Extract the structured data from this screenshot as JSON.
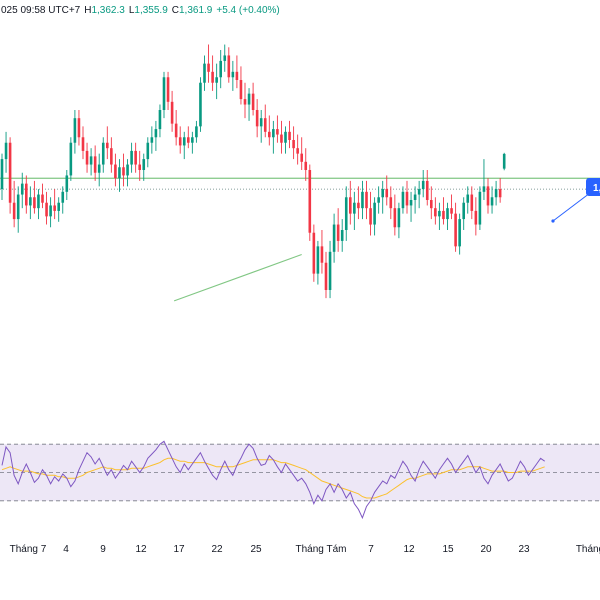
{
  "legend": {
    "time_fragment": "025 09:58 UTC+7",
    "high_label": "H",
    "high_value": "1,362.3",
    "low_label": "L",
    "low_value": "1,355.9",
    "close_label": "C",
    "close_value": "1,361.9",
    "change": "+5.4 (+0.40%)"
  },
  "callout": {
    "text": "1,",
    "color": "#2962ff"
  },
  "colors": {
    "up": "#089981",
    "down": "#f23645",
    "trendline": "#81c784",
    "level": "#4caf50",
    "rsi_line": "#7e57c2",
    "rsi_ma": "#fbc02d",
    "rsi_band": "#ede7f6"
  },
  "chart_data": [
    {
      "type": "candlestick",
      "x_tick_labels": [
        "Tháng 7",
        "4",
        "9",
        "12",
        "17",
        "22",
        "25",
        "Tháng Tám",
        "7",
        "12",
        "15",
        "20",
        "23",
        "Tháng"
      ],
      "ylim": [
        1290,
        1400
      ],
      "levels": [
        {
          "y": 1353,
          "style": "solid"
        },
        {
          "y": 1349,
          "style": "dotted"
        }
      ],
      "trendlines": [
        {
          "x1": 42.5,
          "y1": 1308,
          "x2": 74,
          "y2": 1325
        }
      ],
      "ohlc": [
        [
          1349,
          1362,
          1345,
          1360
        ],
        [
          1360,
          1370,
          1355,
          1366
        ],
        [
          1366,
          1368,
          1340,
          1344
        ],
        [
          1344,
          1352,
          1335,
          1338
        ],
        [
          1338,
          1350,
          1333,
          1347
        ],
        [
          1347,
          1355,
          1342,
          1351
        ],
        [
          1351,
          1354,
          1340,
          1343
        ],
        [
          1343,
          1350,
          1338,
          1346
        ],
        [
          1346,
          1352,
          1340,
          1342
        ],
        [
          1342,
          1349,
          1338,
          1347
        ],
        [
          1347,
          1351,
          1342,
          1344
        ],
        [
          1344,
          1348,
          1336,
          1339
        ],
        [
          1339,
          1346,
          1335,
          1343
        ],
        [
          1343,
          1349,
          1338,
          1341
        ],
        [
          1341,
          1346,
          1337,
          1344
        ],
        [
          1344,
          1350,
          1340,
          1348
        ],
        [
          1348,
          1356,
          1345,
          1354
        ],
        [
          1354,
          1368,
          1352,
          1366
        ],
        [
          1366,
          1378,
          1362,
          1375
        ],
        [
          1375,
          1378,
          1365,
          1368
        ],
        [
          1368,
          1372,
          1360,
          1363
        ],
        [
          1363,
          1366,
          1355,
          1358
        ],
        [
          1358,
          1364,
          1354,
          1361
        ],
        [
          1361,
          1365,
          1352,
          1355
        ],
        [
          1355,
          1362,
          1350,
          1358
        ],
        [
          1358,
          1368,
          1355,
          1366
        ],
        [
          1366,
          1372,
          1360,
          1364
        ],
        [
          1364,
          1368,
          1355,
          1358
        ],
        [
          1358,
          1362,
          1350,
          1353
        ],
        [
          1353,
          1360,
          1348,
          1357
        ],
        [
          1357,
          1362,
          1350,
          1354
        ],
        [
          1354,
          1360,
          1350,
          1358
        ],
        [
          1358,
          1366,
          1355,
          1363
        ],
        [
          1363,
          1366,
          1355,
          1358
        ],
        [
          1358,
          1363,
          1352,
          1356
        ],
        [
          1356,
          1362,
          1352,
          1360
        ],
        [
          1360,
          1368,
          1357,
          1366
        ],
        [
          1366,
          1372,
          1362,
          1368
        ],
        [
          1368,
          1374,
          1363,
          1371
        ],
        [
          1371,
          1380,
          1368,
          1378
        ],
        [
          1378,
          1392,
          1375,
          1390
        ],
        [
          1390,
          1392,
          1378,
          1381
        ],
        [
          1381,
          1385,
          1370,
          1373
        ],
        [
          1373,
          1378,
          1365,
          1368
        ],
        [
          1368,
          1372,
          1362,
          1365
        ],
        [
          1365,
          1370,
          1360,
          1368
        ],
        [
          1368,
          1372,
          1364,
          1366
        ],
        [
          1366,
          1370,
          1362,
          1368
        ],
        [
          1368,
          1374,
          1366,
          1372
        ],
        [
          1372,
          1390,
          1370,
          1388
        ],
        [
          1388,
          1398,
          1385,
          1395
        ],
        [
          1395,
          1402,
          1388,
          1392
        ],
        [
          1392,
          1398,
          1385,
          1388
        ],
        [
          1388,
          1395,
          1382,
          1390
        ],
        [
          1390,
          1400,
          1386,
          1396
        ],
        [
          1396,
          1402,
          1392,
          1398
        ],
        [
          1398,
          1401,
          1388,
          1390
        ],
        [
          1390,
          1396,
          1385,
          1392
        ],
        [
          1392,
          1398,
          1386,
          1389
        ],
        [
          1389,
          1394,
          1380,
          1382
        ],
        [
          1382,
          1388,
          1375,
          1380
        ],
        [
          1380,
          1386,
          1374,
          1384
        ],
        [
          1384,
          1388,
          1376,
          1378
        ],
        [
          1378,
          1382,
          1368,
          1372
        ],
        [
          1372,
          1378,
          1366,
          1375
        ],
        [
          1375,
          1380,
          1368,
          1370
        ],
        [
          1370,
          1376,
          1365,
          1368
        ],
        [
          1368,
          1374,
          1362,
          1371
        ],
        [
          1371,
          1376,
          1366,
          1369
        ],
        [
          1369,
          1374,
          1362,
          1366
        ],
        [
          1366,
          1372,
          1362,
          1370
        ],
        [
          1370,
          1374,
          1364,
          1367
        ],
        [
          1367,
          1372,
          1360,
          1364
        ],
        [
          1364,
          1369,
          1358,
          1362
        ],
        [
          1362,
          1368,
          1356,
          1359
        ],
        [
          1359,
          1364,
          1352,
          1356
        ],
        [
          1356,
          1358,
          1330,
          1333
        ],
        [
          1333,
          1336,
          1315,
          1318
        ],
        [
          1318,
          1330,
          1314,
          1328
        ],
        [
          1328,
          1334,
          1318,
          1322
        ],
        [
          1322,
          1326,
          1309,
          1312
        ],
        [
          1312,
          1330,
          1309,
          1326
        ],
        [
          1326,
          1340,
          1322,
          1336
        ],
        [
          1336,
          1342,
          1326,
          1330
        ],
        [
          1330,
          1338,
          1326,
          1334
        ],
        [
          1334,
          1350,
          1330,
          1346
        ],
        [
          1346,
          1352,
          1336,
          1340
        ],
        [
          1340,
          1348,
          1334,
          1344
        ],
        [
          1344,
          1350,
          1338,
          1342
        ],
        [
          1342,
          1352,
          1338,
          1348
        ],
        [
          1348,
          1352,
          1338,
          1342
        ],
        [
          1342,
          1348,
          1332,
          1336
        ],
        [
          1336,
          1346,
          1332,
          1344
        ],
        [
          1344,
          1350,
          1340,
          1346
        ],
        [
          1346,
          1352,
          1340,
          1349
        ],
        [
          1349,
          1354,
          1343,
          1346
        ],
        [
          1346,
          1350,
          1338,
          1342
        ],
        [
          1342,
          1347,
          1332,
          1335
        ],
        [
          1335,
          1344,
          1331,
          1342
        ],
        [
          1342,
          1350,
          1340,
          1348
        ],
        [
          1348,
          1352,
          1340,
          1343
        ],
        [
          1343,
          1348,
          1337,
          1345
        ],
        [
          1345,
          1350,
          1340,
          1347
        ],
        [
          1347,
          1352,
          1342,
          1349
        ],
        [
          1349,
          1356,
          1346,
          1352
        ],
        [
          1352,
          1356,
          1343,
          1345
        ],
        [
          1345,
          1350,
          1338,
          1342
        ],
        [
          1342,
          1346,
          1336,
          1339
        ],
        [
          1339,
          1344,
          1334,
          1341
        ],
        [
          1341,
          1346,
          1336,
          1338
        ],
        [
          1338,
          1344,
          1334,
          1342
        ],
        [
          1342,
          1347,
          1338,
          1340
        ],
        [
          1340,
          1344,
          1326,
          1328
        ],
        [
          1328,
          1340,
          1325,
          1338
        ],
        [
          1338,
          1346,
          1334,
          1344
        ],
        [
          1344,
          1350,
          1340,
          1347
        ],
        [
          1347,
          1350,
          1338,
          1341
        ],
        [
          1341,
          1346,
          1332,
          1336
        ],
        [
          1336,
          1350,
          1334,
          1348
        ],
        [
          1348,
          1360,
          1345,
          1350
        ],
        [
          1350,
          1353,
          1340,
          1343
        ],
        [
          1343,
          1350,
          1340,
          1346
        ],
        [
          1346,
          1352,
          1343,
          1349
        ],
        [
          1349,
          1353,
          1344,
          1346
        ],
        [
          1356.5,
          1362.3,
          1355.9,
          1361.9
        ]
      ]
    },
    {
      "type": "line",
      "x_tick_labels": [
        "Tháng 7",
        "4",
        "9",
        "12",
        "17",
        "22",
        "25",
        "Tháng Tám",
        "7",
        "12",
        "15",
        "20",
        "23",
        "Tháng"
      ],
      "ylim": [
        20,
        80
      ],
      "bands": [
        30,
        50,
        70
      ],
      "series": [
        {
          "values": [
            55,
            68,
            64,
            48,
            42,
            50,
            56,
            50,
            43,
            46,
            52,
            48,
            42,
            47,
            44,
            49,
            46,
            40,
            44,
            52,
            58,
            64,
            61,
            56,
            60,
            54,
            48,
            52,
            46,
            50,
            55,
            52,
            58,
            54,
            50,
            54,
            60,
            63,
            66,
            70,
            72,
            66,
            60,
            54,
            50,
            56,
            52,
            56,
            60,
            64,
            58,
            53,
            48,
            45,
            52,
            58,
            52,
            48,
            55,
            60,
            66,
            70,
            67,
            60,
            55,
            56,
            62,
            59,
            54,
            50,
            56,
            52,
            48,
            44,
            46,
            42,
            36,
            28,
            34,
            30,
            38,
            42,
            36,
            42,
            38,
            32,
            36,
            28,
            24,
            18,
            26,
            30,
            36,
            40,
            44,
            42,
            48,
            46,
            52,
            58,
            54,
            48,
            44,
            52,
            58,
            54,
            50,
            46,
            52,
            56,
            60,
            56,
            50,
            54,
            58,
            62,
            56,
            50,
            54,
            46,
            42,
            48,
            52,
            56,
            50,
            44,
            46,
            52,
            58,
            54,
            48,
            52,
            56,
            60,
            58
          ]
        },
        {
          "values": [
            52,
            53,
            54,
            53,
            52,
            51,
            51,
            51,
            50,
            49,
            49,
            48,
            48,
            48,
            47,
            47,
            46,
            46,
            46,
            47,
            48,
            50,
            51,
            52,
            53,
            54,
            53,
            53,
            52,
            52,
            52,
            52,
            53,
            53,
            53,
            53,
            54,
            55,
            56,
            57,
            59,
            60,
            60,
            59,
            58,
            58,
            57,
            57,
            57,
            57,
            57,
            56,
            55,
            54,
            54,
            54,
            54,
            54,
            55,
            56,
            57,
            58,
            59,
            59,
            59,
            59,
            59,
            59,
            58,
            57,
            57,
            56,
            55,
            54,
            53,
            52,
            50,
            48,
            46,
            44,
            43,
            42,
            41,
            40,
            39,
            38,
            37,
            36,
            35,
            33,
            32,
            32,
            32,
            33,
            34,
            35,
            37,
            39,
            41,
            43,
            45,
            46,
            46,
            47,
            48,
            49,
            49,
            49,
            49,
            50,
            51,
            52,
            52,
            52,
            53,
            54,
            54,
            54,
            54,
            53,
            52,
            51,
            51,
            51,
            51,
            50,
            50,
            50,
            51,
            51,
            51,
            51,
            52,
            53,
            54
          ]
        }
      ]
    }
  ]
}
